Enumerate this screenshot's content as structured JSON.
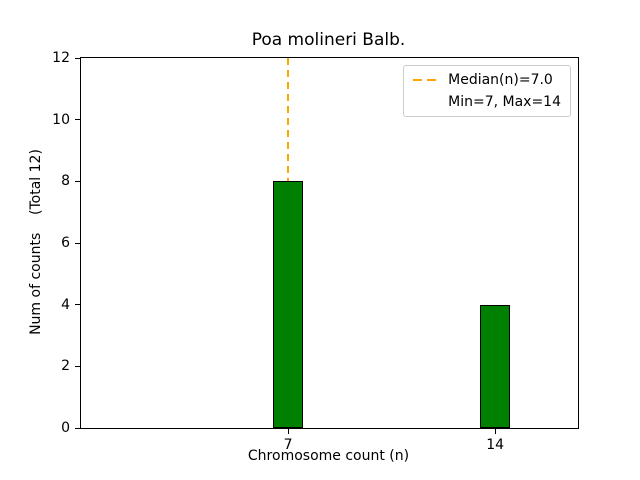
{
  "chart_data": {
    "type": "bar",
    "title": "Poa molineri Balb.",
    "xlabel": "Chromosome count (n)",
    "ylabel": "Num of counts    (Total 12)",
    "x": [
      7,
      14
    ],
    "values": [
      8,
      4
    ],
    "categories": [
      "7",
      "14"
    ],
    "bar_color": "#008000",
    "bar_edge_color": "#000000",
    "bar_width_units": 1.0,
    "xlim": [
      0,
      16.8
    ],
    "ylim": [
      0,
      12
    ],
    "y_ticks": [
      0,
      2,
      4,
      6,
      8,
      10,
      12
    ],
    "x_ticks": [
      7,
      14
    ],
    "grid": false,
    "median_line": {
      "x": 7,
      "color": "#FFA500",
      "style": "dashed"
    },
    "legend": {
      "position": "upper-right",
      "entries": [
        {
          "label": "Median(n)=7.0",
          "sample": "dashed-line",
          "color": "#FFA500"
        },
        {
          "label": "Min=7, Max=14",
          "sample": "none",
          "color": ""
        }
      ]
    }
  }
}
